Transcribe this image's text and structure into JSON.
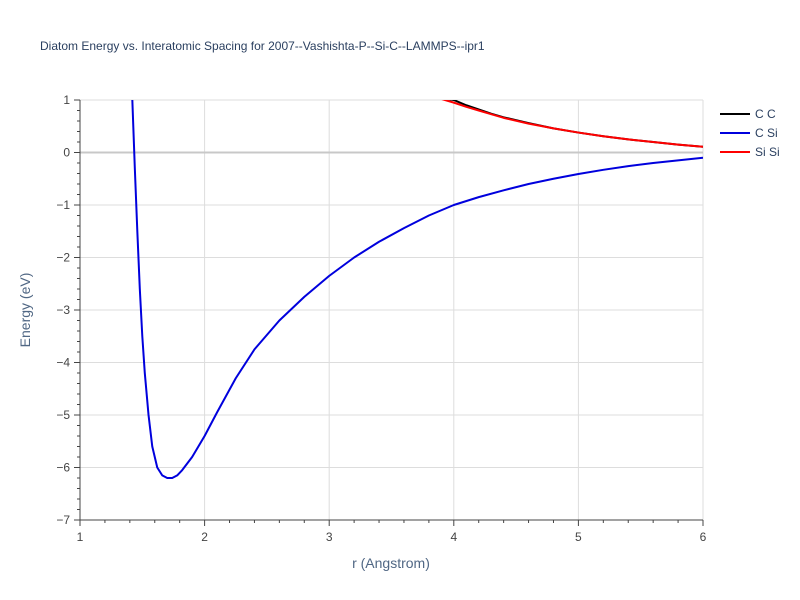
{
  "chart_data": {
    "type": "line",
    "title": "Diatom Energy vs. Interatomic Spacing for 2007--Vashishta-P--Si-C--LAMMPS--ipr1",
    "xlabel": "r (Angstrom)",
    "ylabel": "Energy (eV)",
    "xlim": [
      1,
      6
    ],
    "ylim": [
      -7,
      1
    ],
    "xticks": [
      1,
      2,
      3,
      4,
      5,
      6
    ],
    "yticks": [
      1,
      0,
      -1,
      -2,
      -3,
      -4,
      -5,
      -6,
      -7
    ],
    "xtick_labels": [
      "1",
      "2",
      "3",
      "4",
      "5",
      "6"
    ],
    "ytick_labels": [
      "1",
      "0",
      "−1",
      "−2",
      "−3",
      "−4",
      "−5",
      "−6",
      "−7"
    ],
    "grid": true,
    "legend_position": "top-right",
    "series": [
      {
        "name": "C C",
        "color": "#000000",
        "x": [
          3.95,
          4.0,
          4.1,
          4.2,
          4.3,
          4.4,
          4.6,
          4.8,
          5.0,
          5.2,
          5.4,
          5.6,
          5.8,
          6.0
        ],
        "y": [
          1.02,
          1.0,
          0.9,
          0.82,
          0.74,
          0.67,
          0.56,
          0.46,
          0.38,
          0.31,
          0.25,
          0.2,
          0.15,
          0.11
        ]
      },
      {
        "name": "C Si",
        "color": "#0000dd",
        "x": [
          1.42,
          1.44,
          1.46,
          1.48,
          1.5,
          1.52,
          1.55,
          1.58,
          1.62,
          1.66,
          1.7,
          1.74,
          1.78,
          1.82,
          1.9,
          2.0,
          2.1,
          2.25,
          2.4,
          2.6,
          2.8,
          3.0,
          3.2,
          3.4,
          3.6,
          3.8,
          4.0,
          4.2,
          4.4,
          4.6,
          4.8,
          5.0,
          5.2,
          5.4,
          5.6,
          5.8,
          6.0
        ],
        "y": [
          1.0,
          -0.3,
          -1.5,
          -2.6,
          -3.5,
          -4.2,
          -5.0,
          -5.6,
          -6.0,
          -6.15,
          -6.2,
          -6.2,
          -6.15,
          -6.05,
          -5.8,
          -5.4,
          -4.95,
          -4.3,
          -3.75,
          -3.2,
          -2.75,
          -2.35,
          -2.0,
          -1.7,
          -1.44,
          -1.2,
          -1.0,
          -0.85,
          -0.72,
          -0.6,
          -0.5,
          -0.41,
          -0.33,
          -0.26,
          -0.2,
          -0.15,
          -0.1
        ]
      },
      {
        "name": "Si Si",
        "color": "#ff0000",
        "x": [
          3.9,
          4.0,
          4.1,
          4.2,
          4.3,
          4.4,
          4.6,
          4.8,
          5.0,
          5.2,
          5.4,
          5.6,
          5.8,
          6.0
        ],
        "y": [
          1.02,
          0.95,
          0.87,
          0.8,
          0.73,
          0.66,
          0.55,
          0.46,
          0.38,
          0.31,
          0.25,
          0.2,
          0.15,
          0.11
        ]
      }
    ]
  }
}
